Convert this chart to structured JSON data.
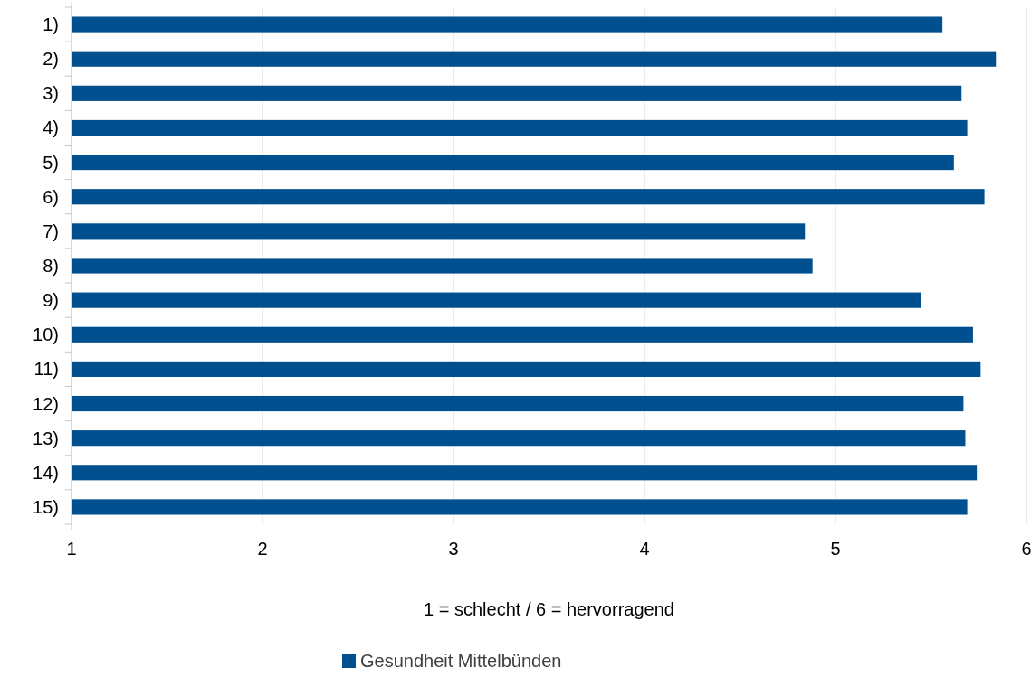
{
  "chart_data": {
    "type": "bar",
    "orientation": "horizontal",
    "xlabel": "1 = schlecht / 6 = hervorragend",
    "categories": [
      "1)",
      "2)",
      "3)",
      "4)",
      "5)",
      "6)",
      "7)",
      "8)",
      "9)",
      "10)",
      "11)",
      "12)",
      "13)",
      "14)",
      "15)"
    ],
    "series": [
      {
        "name": "Gesundheit Mittelbünden",
        "color": "#004f8f",
        "values": [
          5.56,
          5.84,
          5.66,
          5.69,
          5.62,
          5.78,
          4.84,
          4.88,
          5.45,
          5.72,
          5.76,
          5.67,
          5.68,
          5.74,
          5.69
        ]
      }
    ],
    "xlim": [
      1,
      6
    ],
    "xticks": [
      1,
      2,
      3,
      4,
      5,
      6
    ],
    "grid": "x",
    "legend": "bottom"
  }
}
